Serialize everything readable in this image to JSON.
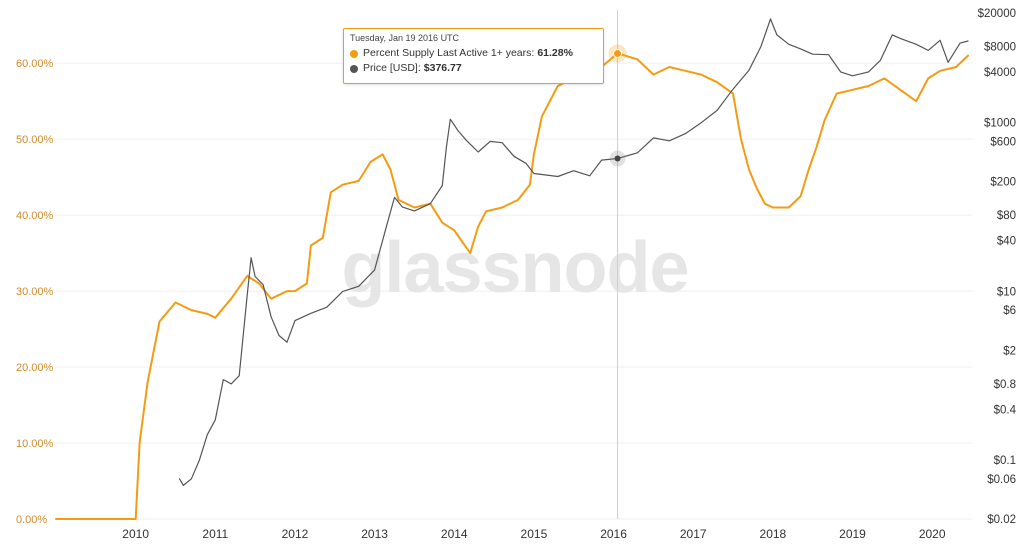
{
  "watermark": "glassnode",
  "tooltip": {
    "date": "Tuesday, Jan 19 2016 UTC",
    "rows": [
      {
        "label": "Percent Supply Last Active 1+ years:",
        "value": "61.28%",
        "color": "#f39c12"
      },
      {
        "label": "Price [USD]:",
        "value": "$376.77",
        "color": "#555555"
      }
    ]
  },
  "chart_data": {
    "type": "line",
    "title": "",
    "legend": "none",
    "grid": "horizontal",
    "x_axis": {
      "ticks": [
        "2010",
        "2011",
        "2012",
        "2013",
        "2014",
        "2015",
        "2016",
        "2017",
        "2018",
        "2019",
        "2020"
      ],
      "range": [
        "2009-01-03",
        "2020-06-30"
      ]
    },
    "y_left": {
      "ticks": [
        "0.00%",
        "10.00%",
        "20.00%",
        "30.00%",
        "40.00%",
        "50.00%",
        "60.00%"
      ],
      "range": [
        0,
        67
      ],
      "color": "#d18b2a"
    },
    "y_right": {
      "scale": "log",
      "ticks": [
        "$0.02",
        "$0.06",
        "$0.1",
        "$0.4",
        "$0.8",
        "$2",
        "$6",
        "$10",
        "$40",
        "$80",
        "$200",
        "$600",
        "$1000",
        "$4000",
        "$8000",
        "$20000"
      ]
    },
    "series": [
      {
        "name": "Percent Supply Last Active 1+ years",
        "axis": "left",
        "color": "#f39c12",
        "points": [
          [
            "2009.0",
            0.0
          ],
          [
            "2010.0",
            0.0
          ],
          [
            "2010.05",
            10.0
          ],
          [
            "2010.15",
            18.0
          ],
          [
            "2010.3",
            26.0
          ],
          [
            "2010.5",
            28.5
          ],
          [
            "2010.7",
            27.5
          ],
          [
            "2010.9",
            27.0
          ],
          [
            "2011.0",
            26.5
          ],
          [
            "2011.2",
            29.0
          ],
          [
            "2011.4",
            32.0
          ],
          [
            "2011.55",
            31.0
          ],
          [
            "2011.7",
            29.0
          ],
          [
            "2011.9",
            30.0
          ],
          [
            "2012.0",
            30.0
          ],
          [
            "2012.15",
            31.0
          ],
          [
            "2012.2",
            36.0
          ],
          [
            "2012.35",
            37.0
          ],
          [
            "2012.45",
            43.0
          ],
          [
            "2012.6",
            44.0
          ],
          [
            "2012.8",
            44.5
          ],
          [
            "2012.95",
            47.0
          ],
          [
            "2013.1",
            48.0
          ],
          [
            "2013.2",
            46.0
          ],
          [
            "2013.3",
            42.0
          ],
          [
            "2013.5",
            41.0
          ],
          [
            "2013.7",
            41.5
          ],
          [
            "2013.85",
            39.0
          ],
          [
            "2014.0",
            38.0
          ],
          [
            "2014.1",
            36.5
          ],
          [
            "2014.2",
            35.0
          ],
          [
            "2014.3",
            38.5
          ],
          [
            "2014.4",
            40.5
          ],
          [
            "2014.6",
            41.0
          ],
          [
            "2014.8",
            42.0
          ],
          [
            "2014.95",
            44.0
          ],
          [
            "2015.0",
            48.0
          ],
          [
            "2015.1",
            53.0
          ],
          [
            "2015.2",
            55.0
          ],
          [
            "2015.3",
            57.0
          ],
          [
            "2015.5",
            58.0
          ],
          [
            "2015.7",
            58.5
          ],
          [
            "2015.85",
            59.5
          ],
          [
            "2016.05",
            61.3
          ],
          [
            "2016.3",
            60.5
          ],
          [
            "2016.5",
            58.5
          ],
          [
            "2016.7",
            59.5
          ],
          [
            "2016.9",
            59.0
          ],
          [
            "2017.1",
            58.5
          ],
          [
            "2017.3",
            57.5
          ],
          [
            "2017.5",
            56.0
          ],
          [
            "2017.6",
            50.0
          ],
          [
            "2017.7",
            46.0
          ],
          [
            "2017.8",
            43.5
          ],
          [
            "2017.9",
            41.5
          ],
          [
            "2018.0",
            41.0
          ],
          [
            "2018.2",
            41.0
          ],
          [
            "2018.35",
            42.5
          ],
          [
            "2018.45",
            46.0
          ],
          [
            "2018.55",
            49.0
          ],
          [
            "2018.65",
            52.5
          ],
          [
            "2018.8",
            56.0
          ],
          [
            "2019.0",
            56.5
          ],
          [
            "2019.2",
            57.0
          ],
          [
            "2019.4",
            58.0
          ],
          [
            "2019.6",
            56.5
          ],
          [
            "2019.8",
            55.0
          ],
          [
            "2019.95",
            58.0
          ],
          [
            "2020.1",
            59.0
          ],
          [
            "2020.3",
            59.5
          ],
          [
            "2020.45",
            61.0
          ]
        ]
      },
      {
        "name": "Price [USD]",
        "axis": "right",
        "color": "#555555",
        "points": [
          [
            "2010.55",
            0.06
          ],
          [
            "2010.6",
            0.05
          ],
          [
            "2010.7",
            0.06
          ],
          [
            "2010.8",
            0.1
          ],
          [
            "2010.9",
            0.2
          ],
          [
            "2011.0",
            0.3
          ],
          [
            "2011.1",
            0.9
          ],
          [
            "2011.2",
            0.8
          ],
          [
            "2011.3",
            1.0
          ],
          [
            "2011.4",
            9.0
          ],
          [
            "2011.45",
            25.0
          ],
          [
            "2011.5",
            15.0
          ],
          [
            "2011.6",
            12.0
          ],
          [
            "2011.7",
            5.0
          ],
          [
            "2011.8",
            3.0
          ],
          [
            "2011.9",
            2.5
          ],
          [
            "2012.0",
            4.5
          ],
          [
            "2012.2",
            5.5
          ],
          [
            "2012.4",
            6.5
          ],
          [
            "2012.6",
            10.0
          ],
          [
            "2012.8",
            11.5
          ],
          [
            "2013.0",
            18.0
          ],
          [
            "2013.15",
            60.0
          ],
          [
            "2013.25",
            130.0
          ],
          [
            "2013.35",
            100.0
          ],
          [
            "2013.5",
            90.0
          ],
          [
            "2013.7",
            110.0
          ],
          [
            "2013.85",
            180.0
          ],
          [
            "2013.9",
            500.0
          ],
          [
            "2013.95",
            1100.0
          ],
          [
            "2014.05",
            800.0
          ],
          [
            "2014.15",
            620.0
          ],
          [
            "2014.3",
            450.0
          ],
          [
            "2014.45",
            600.0
          ],
          [
            "2014.6",
            580.0
          ],
          [
            "2014.75",
            400.0
          ],
          [
            "2014.9",
            330.0
          ],
          [
            "2015.0",
            250.0
          ],
          [
            "2015.15",
            240.0
          ],
          [
            "2015.3",
            230.0
          ],
          [
            "2015.5",
            270.0
          ],
          [
            "2015.7",
            235.0
          ],
          [
            "2015.85",
            360.0
          ],
          [
            "2016.05",
            376.77
          ],
          [
            "2016.3",
            440.0
          ],
          [
            "2016.5",
            660.0
          ],
          [
            "2016.7",
            610.0
          ],
          [
            "2016.9",
            740.0
          ],
          [
            "2017.1",
            1000.0
          ],
          [
            "2017.3",
            1400.0
          ],
          [
            "2017.5",
            2500.0
          ],
          [
            "2017.7",
            4200.0
          ],
          [
            "2017.85",
            8000.0
          ],
          [
            "2017.97",
            17000.0
          ],
          [
            "2018.05",
            11000.0
          ],
          [
            "2018.2",
            8500.0
          ],
          [
            "2018.35",
            7500.0
          ],
          [
            "2018.5",
            6500.0
          ],
          [
            "2018.7",
            6400.0
          ],
          [
            "2018.85",
            4000.0
          ],
          [
            "2019.0",
            3600.0
          ],
          [
            "2019.2",
            4000.0
          ],
          [
            "2019.35",
            5500.0
          ],
          [
            "2019.5",
            11000.0
          ],
          [
            "2019.6",
            10000.0
          ],
          [
            "2019.8",
            8500.0
          ],
          [
            "2019.95",
            7200.0
          ],
          [
            "2020.1",
            9500.0
          ],
          [
            "2020.2",
            5200.0
          ],
          [
            "2020.35",
            8800.0
          ],
          [
            "2020.45",
            9300.0
          ]
        ]
      }
    ],
    "crosshair": {
      "x": "2016.05",
      "orange_value": 61.28,
      "price_value": 376.77
    }
  }
}
